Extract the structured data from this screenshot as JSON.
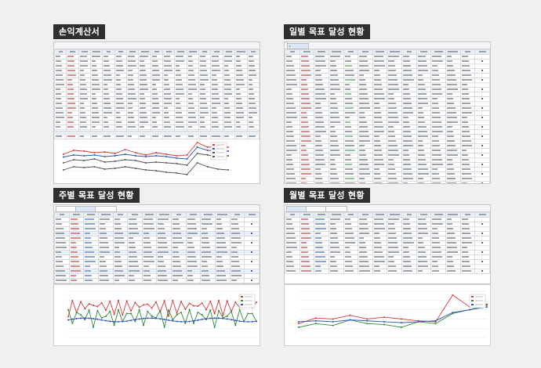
{
  "panels": {
    "pnl": {
      "title": "손익계산서"
    },
    "daily": {
      "title": "일별 목표 달성 현황"
    },
    "weekly": {
      "title": "주별 목표 달성 현황"
    },
    "monthly": {
      "title": "월별 목표 달성 현황"
    }
  },
  "colors": {
    "title_bg": "#2f2f2f",
    "series_red": "#d23c3c",
    "series_green": "#2f8a3a",
    "series_blue": "#2a56b8",
    "series_gray": "#555555"
  }
}
